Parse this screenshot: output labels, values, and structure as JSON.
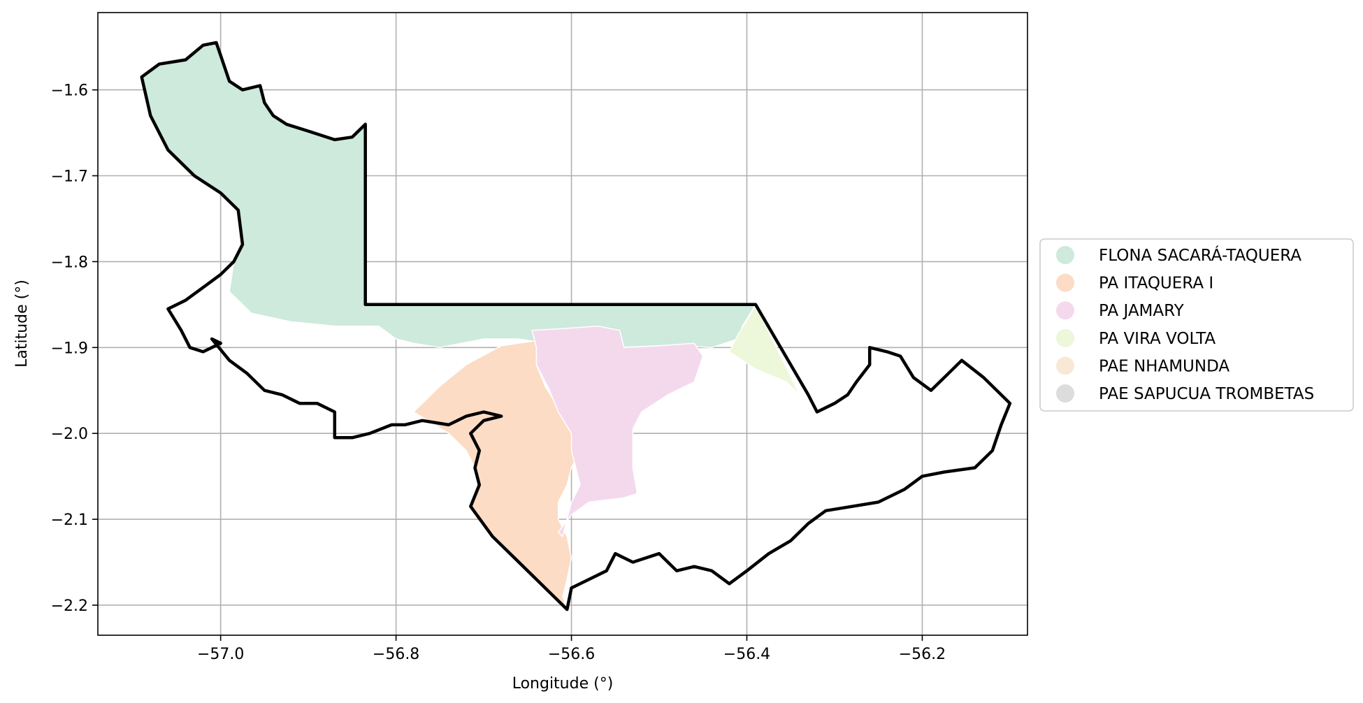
{
  "chart_data": {
    "type": "map",
    "xlabel": "Longitude (°)",
    "ylabel": "Latitude (°)",
    "xlim": [
      -57.14,
      -56.08
    ],
    "ylim": [
      -2.235,
      -1.51
    ],
    "x_ticks": [
      {
        "value": -57.0,
        "label": "−57.0"
      },
      {
        "value": -56.8,
        "label": "−56.8"
      },
      {
        "value": -56.6,
        "label": "−56.6"
      },
      {
        "value": -56.4,
        "label": "−56.4"
      },
      {
        "value": -56.2,
        "label": "−56.2"
      }
    ],
    "y_ticks": [
      {
        "value": -1.6,
        "label": "−1.6"
      },
      {
        "value": -1.7,
        "label": "−1.7"
      },
      {
        "value": -1.8,
        "label": "−1.8"
      },
      {
        "value": -1.9,
        "label": "−1.9"
      },
      {
        "value": -2.0,
        "label": "−2.0"
      },
      {
        "value": -2.1,
        "label": "−2.1"
      },
      {
        "value": -2.2,
        "label": "−2.2"
      }
    ],
    "grid": true,
    "legend": {
      "placement": "right",
      "entries": [
        {
          "label": "FLONA SACARÁ-TAQUERA",
          "color": "#cdeadc"
        },
        {
          "label": "PA ITAQUERA I",
          "color": "#fcdcc5"
        },
        {
          "label": "PA JAMARY",
          "color": "#f4d9ed"
        },
        {
          "label": "PA VIRA VOLTA",
          "color": "#edf7d9"
        },
        {
          "label": "PAE NHAMUNDA",
          "color": "#f8e9d6"
        },
        {
          "label": "PAE SAPUCUA TROMBETAS",
          "color": "#dcdcdc"
        }
      ]
    },
    "areas": [
      {
        "label": "FLONA SACARÁ-TAQUERA",
        "color": "#cdeadc",
        "polygon": [
          [
            -57.09,
            -1.585
          ],
          [
            -57.07,
            -1.57
          ],
          [
            -57.04,
            -1.565
          ],
          [
            -57.02,
            -1.548
          ],
          [
            -57.005,
            -1.545
          ],
          [
            -57.0,
            -1.56
          ],
          [
            -56.99,
            -1.59
          ],
          [
            -56.975,
            -1.6
          ],
          [
            -56.955,
            -1.595
          ],
          [
            -56.95,
            -1.615
          ],
          [
            -56.94,
            -1.63
          ],
          [
            -56.925,
            -1.64
          ],
          [
            -56.9,
            -1.648
          ],
          [
            -56.87,
            -1.658
          ],
          [
            -56.85,
            -1.655
          ],
          [
            -56.835,
            -1.64
          ],
          [
            -56.835,
            -1.85
          ],
          [
            -56.39,
            -1.85
          ],
          [
            -56.405,
            -1.875
          ],
          [
            -56.41,
            -1.89
          ],
          [
            -56.44,
            -1.9
          ],
          [
            -56.47,
            -1.898
          ],
          [
            -56.5,
            -1.898
          ],
          [
            -56.55,
            -1.9
          ],
          [
            -56.58,
            -1.892
          ],
          [
            -56.6,
            -1.885
          ],
          [
            -56.63,
            -1.895
          ],
          [
            -56.66,
            -1.89
          ],
          [
            -56.7,
            -1.89
          ],
          [
            -56.75,
            -1.9
          ],
          [
            -56.78,
            -1.895
          ],
          [
            -56.8,
            -1.89
          ],
          [
            -56.82,
            -1.875
          ],
          [
            -56.87,
            -1.875
          ],
          [
            -56.92,
            -1.87
          ],
          [
            -56.965,
            -1.86
          ],
          [
            -56.99,
            -1.835
          ],
          [
            -56.985,
            -1.8
          ],
          [
            -56.975,
            -1.78
          ],
          [
            -56.98,
            -1.74
          ],
          [
            -57.0,
            -1.72
          ],
          [
            -57.03,
            -1.7
          ],
          [
            -57.06,
            -1.67
          ],
          [
            -57.08,
            -1.63
          ]
        ]
      },
      {
        "label": "PA ITAQUERA I",
        "color": "#fcdcc5",
        "polygon": [
          [
            -56.78,
            -1.975
          ],
          [
            -56.75,
            -1.945
          ],
          [
            -56.72,
            -1.92
          ],
          [
            -56.68,
            -1.898
          ],
          [
            -56.64,
            -1.892
          ],
          [
            -56.635,
            -1.905
          ],
          [
            -56.64,
            -1.92
          ],
          [
            -56.63,
            -1.945
          ],
          [
            -56.615,
            -1.97
          ],
          [
            -56.605,
            -1.985
          ],
          [
            -56.6,
            -2.0
          ],
          [
            -56.59,
            -2.02
          ],
          [
            -56.6,
            -2.04
          ],
          [
            -56.605,
            -2.06
          ],
          [
            -56.615,
            -2.08
          ],
          [
            -56.615,
            -2.1
          ],
          [
            -56.605,
            -2.12
          ],
          [
            -56.6,
            -2.145
          ],
          [
            -56.605,
            -2.17
          ],
          [
            -56.61,
            -2.19
          ],
          [
            -56.605,
            -2.205
          ],
          [
            -56.62,
            -2.19
          ],
          [
            -56.66,
            -2.15
          ],
          [
            -56.69,
            -2.12
          ],
          [
            -56.715,
            -2.085
          ],
          [
            -56.705,
            -2.06
          ],
          [
            -56.71,
            -2.04
          ],
          [
            -56.72,
            -2.02
          ],
          [
            -56.74,
            -2.0
          ]
        ]
      },
      {
        "label": "PA JAMARY",
        "color": "#f4d9ed",
        "polygon": [
          [
            -56.64,
            -1.9
          ],
          [
            -56.645,
            -1.88
          ],
          [
            -56.61,
            -1.878
          ],
          [
            -56.57,
            -1.875
          ],
          [
            -56.545,
            -1.88
          ],
          [
            -56.54,
            -1.9
          ],
          [
            -56.5,
            -1.898
          ],
          [
            -56.46,
            -1.895
          ],
          [
            -56.45,
            -1.91
          ],
          [
            -56.46,
            -1.94
          ],
          [
            -56.49,
            -1.955
          ],
          [
            -56.52,
            -1.975
          ],
          [
            -56.53,
            -1.995
          ],
          [
            -56.53,
            -2.04
          ],
          [
            -56.525,
            -2.07
          ],
          [
            -56.54,
            -2.075
          ],
          [
            -56.58,
            -2.08
          ],
          [
            -56.6,
            -2.095
          ],
          [
            -56.615,
            -2.115
          ],
          [
            -56.61,
            -2.12
          ],
          [
            -56.605,
            -2.1
          ],
          [
            -56.6,
            -2.08
          ],
          [
            -56.59,
            -2.06
          ],
          [
            -56.595,
            -2.04
          ],
          [
            -56.6,
            -2.02
          ],
          [
            -56.6,
            -2.0
          ],
          [
            -56.615,
            -1.975
          ],
          [
            -56.625,
            -1.95
          ],
          [
            -56.64,
            -1.92
          ]
        ]
      },
      {
        "label": "PA VIRA VOLTA",
        "color": "#edf7d9",
        "polygon": [
          [
            -56.395,
            -1.86
          ],
          [
            -56.41,
            -1.885
          ],
          [
            -56.42,
            -1.905
          ],
          [
            -56.39,
            -1.925
          ],
          [
            -56.355,
            -1.94
          ],
          [
            -56.34,
            -1.955
          ],
          [
            -56.39,
            -1.85
          ]
        ]
      }
    ],
    "boundary": [
      [
        -57.09,
        -1.585
      ],
      [
        -57.07,
        -1.57
      ],
      [
        -57.04,
        -1.565
      ],
      [
        -57.02,
        -1.548
      ],
      [
        -57.005,
        -1.545
      ],
      [
        -57.0,
        -1.56
      ],
      [
        -56.99,
        -1.59
      ],
      [
        -56.975,
        -1.6
      ],
      [
        -56.955,
        -1.595
      ],
      [
        -56.95,
        -1.615
      ],
      [
        -56.94,
        -1.63
      ],
      [
        -56.925,
        -1.64
      ],
      [
        -56.9,
        -1.648
      ],
      [
        -56.87,
        -1.658
      ],
      [
        -56.85,
        -1.655
      ],
      [
        -56.835,
        -1.64
      ],
      [
        -56.835,
        -1.85
      ],
      [
        -56.39,
        -1.85
      ],
      [
        -56.33,
        -1.955
      ],
      [
        -56.32,
        -1.975
      ],
      [
        -56.3,
        -1.965
      ],
      [
        -56.285,
        -1.955
      ],
      [
        -56.275,
        -1.94
      ],
      [
        -56.26,
        -1.92
      ],
      [
        -56.26,
        -1.9
      ],
      [
        -56.24,
        -1.905
      ],
      [
        -56.225,
        -1.91
      ],
      [
        -56.21,
        -1.935
      ],
      [
        -56.19,
        -1.95
      ],
      [
        -56.17,
        -1.93
      ],
      [
        -56.155,
        -1.915
      ],
      [
        -56.13,
        -1.935
      ],
      [
        -56.1,
        -1.965
      ],
      [
        -56.11,
        -1.99
      ],
      [
        -56.12,
        -2.02
      ],
      [
        -56.14,
        -2.04
      ],
      [
        -56.175,
        -2.045
      ],
      [
        -56.2,
        -2.05
      ],
      [
        -56.22,
        -2.065
      ],
      [
        -56.25,
        -2.08
      ],
      [
        -56.28,
        -2.085
      ],
      [
        -56.31,
        -2.09
      ],
      [
        -56.33,
        -2.105
      ],
      [
        -56.35,
        -2.125
      ],
      [
        -56.375,
        -2.14
      ],
      [
        -56.4,
        -2.16
      ],
      [
        -56.42,
        -2.175
      ],
      [
        -56.44,
        -2.16
      ],
      [
        -56.46,
        -2.155
      ],
      [
        -56.48,
        -2.16
      ],
      [
        -56.5,
        -2.14
      ],
      [
        -56.53,
        -2.15
      ],
      [
        -56.55,
        -2.14
      ],
      [
        -56.56,
        -2.16
      ],
      [
        -56.58,
        -2.17
      ],
      [
        -56.6,
        -2.18
      ],
      [
        -56.605,
        -2.205
      ],
      [
        -56.62,
        -2.19
      ],
      [
        -56.66,
        -2.15
      ],
      [
        -56.69,
        -2.12
      ],
      [
        -56.715,
        -2.085
      ],
      [
        -56.705,
        -2.06
      ],
      [
        -56.71,
        -2.04
      ],
      [
        -56.705,
        -2.02
      ],
      [
        -56.715,
        -2.0
      ],
      [
        -56.7,
        -1.985
      ],
      [
        -56.68,
        -1.98
      ],
      [
        -56.7,
        -1.975
      ],
      [
        -56.72,
        -1.98
      ],
      [
        -56.74,
        -1.99
      ],
      [
        -56.77,
        -1.985
      ],
      [
        -56.79,
        -1.99
      ],
      [
        -56.805,
        -1.99
      ],
      [
        -56.83,
        -2.0
      ],
      [
        -56.85,
        -2.005
      ],
      [
        -56.87,
        -2.005
      ],
      [
        -56.87,
        -1.975
      ],
      [
        -56.89,
        -1.965
      ],
      [
        -56.91,
        -1.965
      ],
      [
        -56.93,
        -1.955
      ],
      [
        -56.95,
        -1.95
      ],
      [
        -56.97,
        -1.93
      ],
      [
        -56.99,
        -1.915
      ],
      [
        -57.01,
        -1.89
      ],
      [
        -57.0,
        -1.895
      ],
      [
        -57.02,
        -1.905
      ],
      [
        -57.035,
        -1.9
      ],
      [
        -57.045,
        -1.88
      ],
      [
        -57.06,
        -1.855
      ],
      [
        -57.04,
        -1.845
      ],
      [
        -57.02,
        -1.83
      ],
      [
        -57.0,
        -1.815
      ],
      [
        -56.985,
        -1.8
      ],
      [
        -56.975,
        -1.78
      ],
      [
        -56.98,
        -1.74
      ],
      [
        -57.0,
        -1.72
      ],
      [
        -57.03,
        -1.7
      ],
      [
        -57.06,
        -1.67
      ],
      [
        -57.08,
        -1.63
      ],
      [
        -57.09,
        -1.585
      ]
    ]
  }
}
